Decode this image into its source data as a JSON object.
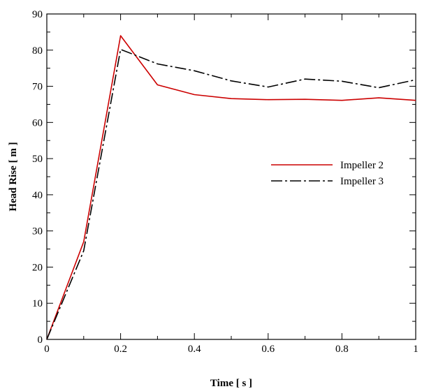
{
  "chart_data": {
    "type": "line",
    "xlabel": "Time [ s ]",
    "ylabel": "Head Rise [ m ]",
    "xlim": [
      0,
      1
    ],
    "ylim": [
      0,
      90
    ],
    "x_ticks": [
      0,
      0.2,
      0.4,
      0.6,
      0.8,
      1
    ],
    "x_tick_labels": [
      "0",
      "0.2",
      "0.4",
      "0.6",
      "0.8",
      "1"
    ],
    "y_ticks": [
      0,
      10,
      20,
      30,
      40,
      50,
      60,
      70,
      80,
      90
    ],
    "y_tick_labels": [
      "0",
      "10",
      "20",
      "30",
      "40",
      "50",
      "60",
      "70",
      "80",
      "90"
    ],
    "grid": false,
    "legend_position": "right-middle",
    "series": [
      {
        "name": "Impeller 2",
        "color": "#cc0000",
        "line_style": "solid",
        "x": [
          0,
          0.1,
          0.2,
          0.3,
          0.4,
          0.5,
          0.6,
          0.7,
          0.8,
          0.9,
          1.0
        ],
        "y": [
          0,
          27,
          84,
          70.4,
          67.7,
          66.6,
          66.3,
          66.4,
          66.1,
          66.8,
          66.1
        ]
      },
      {
        "name": "Impeller 3",
        "color": "#000000",
        "line_style": "dash-dot",
        "x": [
          0,
          0.1,
          0.2,
          0.3,
          0.4,
          0.5,
          0.6,
          0.7,
          0.8,
          0.9,
          1.0
        ],
        "y": [
          0,
          24.5,
          80.2,
          76.2,
          74.3,
          71.5,
          69.8,
          72,
          71.4,
          69.6,
          71.8
        ]
      }
    ]
  }
}
